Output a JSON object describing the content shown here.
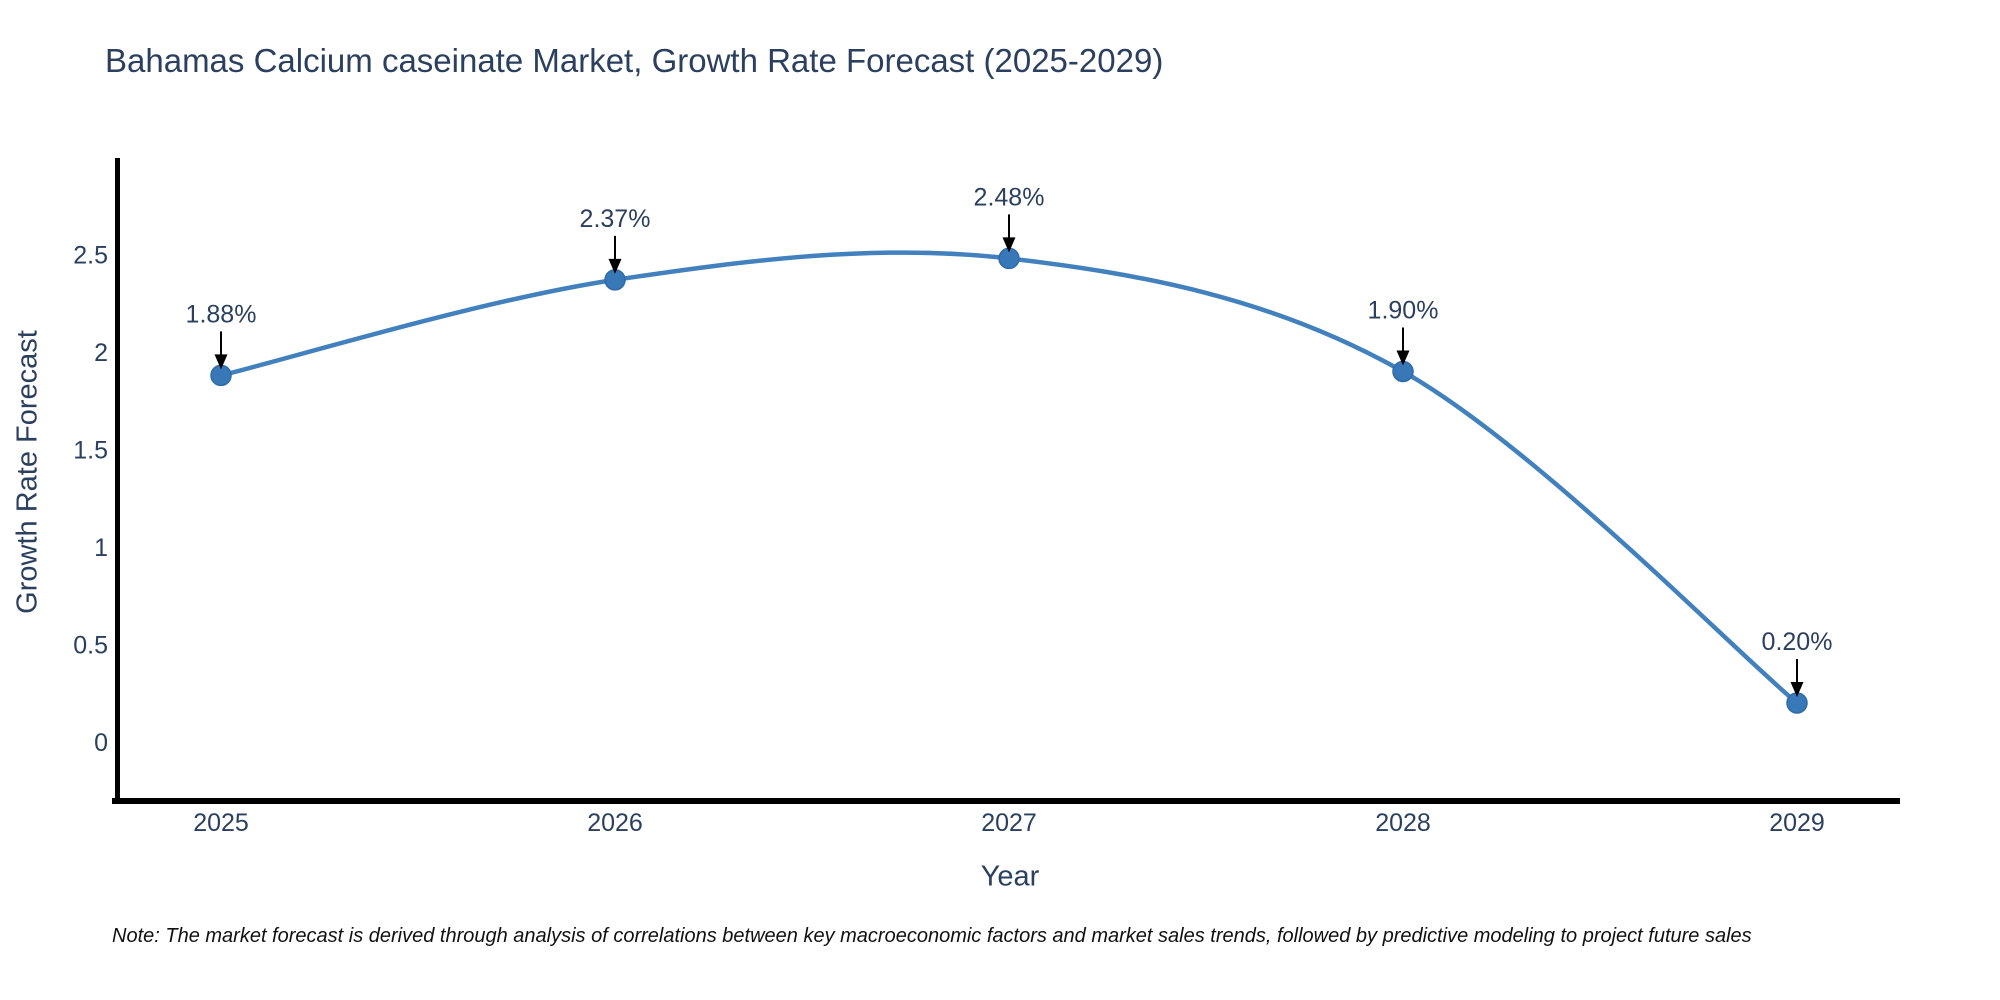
{
  "chart_data": {
    "type": "line",
    "title": "Bahamas Calcium caseinate Market, Growth Rate Forecast (2025-2029)",
    "xlabel": "Year",
    "ylabel": "Growth Rate Forecast",
    "categories": [
      "2025",
      "2026",
      "2027",
      "2028",
      "2029"
    ],
    "series": [
      {
        "name": "Growth Rate Forecast",
        "values": [
          1.88,
          2.37,
          2.48,
          1.9,
          0.2
        ],
        "point_labels": [
          "1.88%",
          "2.37%",
          "2.48%",
          "1.90%",
          "0.20%"
        ]
      }
    ],
    "yticks": [
      0,
      0.5,
      1,
      1.5,
      2,
      2.5
    ],
    "ylim": [
      -0.33,
      3.0
    ],
    "grid": false,
    "legend": "none",
    "line_color": "#4281bd",
    "marker_color": "#3878b6",
    "marker_edge_color": "#2f6ba8",
    "axis_color": "#000000",
    "text_color": "#2b3f5e",
    "annotation_arrow_color": "#000000",
    "note": "Note: The market forecast is derived through analysis of correlations between key macroeconomic factors and market sales trends, followed by predictive modeling to project future sales"
  }
}
